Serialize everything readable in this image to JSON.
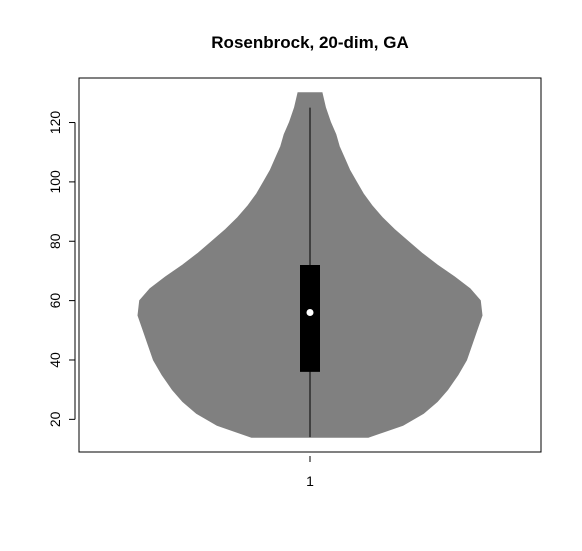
{
  "chart_data": {
    "type": "violin",
    "title": "Rosenbrock, 20-dim, GA",
    "xlabel": "",
    "ylabel": "",
    "categories": [
      "1"
    ],
    "ylim": [
      9,
      135
    ],
    "yticks": [
      20,
      40,
      60,
      80,
      100,
      120
    ],
    "grid": false,
    "legend": "none",
    "colors": {
      "violin_fill": "#808080",
      "box_fill": "#000000",
      "median_point": "#ffffff",
      "outline": "#000000"
    },
    "violins": [
      {
        "category": "1",
        "min": 14,
        "max": 130,
        "whisker_low": 14,
        "whisker_high": 125,
        "q1": 36,
        "median": 56,
        "q3": 72,
        "density_profile": [
          [
            14,
            0.34
          ],
          [
            18,
            0.54
          ],
          [
            22,
            0.66
          ],
          [
            26,
            0.74
          ],
          [
            30,
            0.8
          ],
          [
            35,
            0.86
          ],
          [
            40,
            0.91
          ],
          [
            45,
            0.94
          ],
          [
            50,
            0.97
          ],
          [
            55,
            1.0
          ],
          [
            60,
            0.99
          ],
          [
            64,
            0.93
          ],
          [
            68,
            0.84
          ],
          [
            72,
            0.74
          ],
          [
            76,
            0.65
          ],
          [
            80,
            0.57
          ],
          [
            84,
            0.49
          ],
          [
            88,
            0.42
          ],
          [
            92,
            0.36
          ],
          [
            96,
            0.31
          ],
          [
            100,
            0.27
          ],
          [
            104,
            0.23
          ],
          [
            108,
            0.2
          ],
          [
            112,
            0.17
          ],
          [
            116,
            0.15
          ],
          [
            120,
            0.12
          ],
          [
            125,
            0.09
          ],
          [
            130,
            0.07
          ]
        ]
      }
    ]
  }
}
